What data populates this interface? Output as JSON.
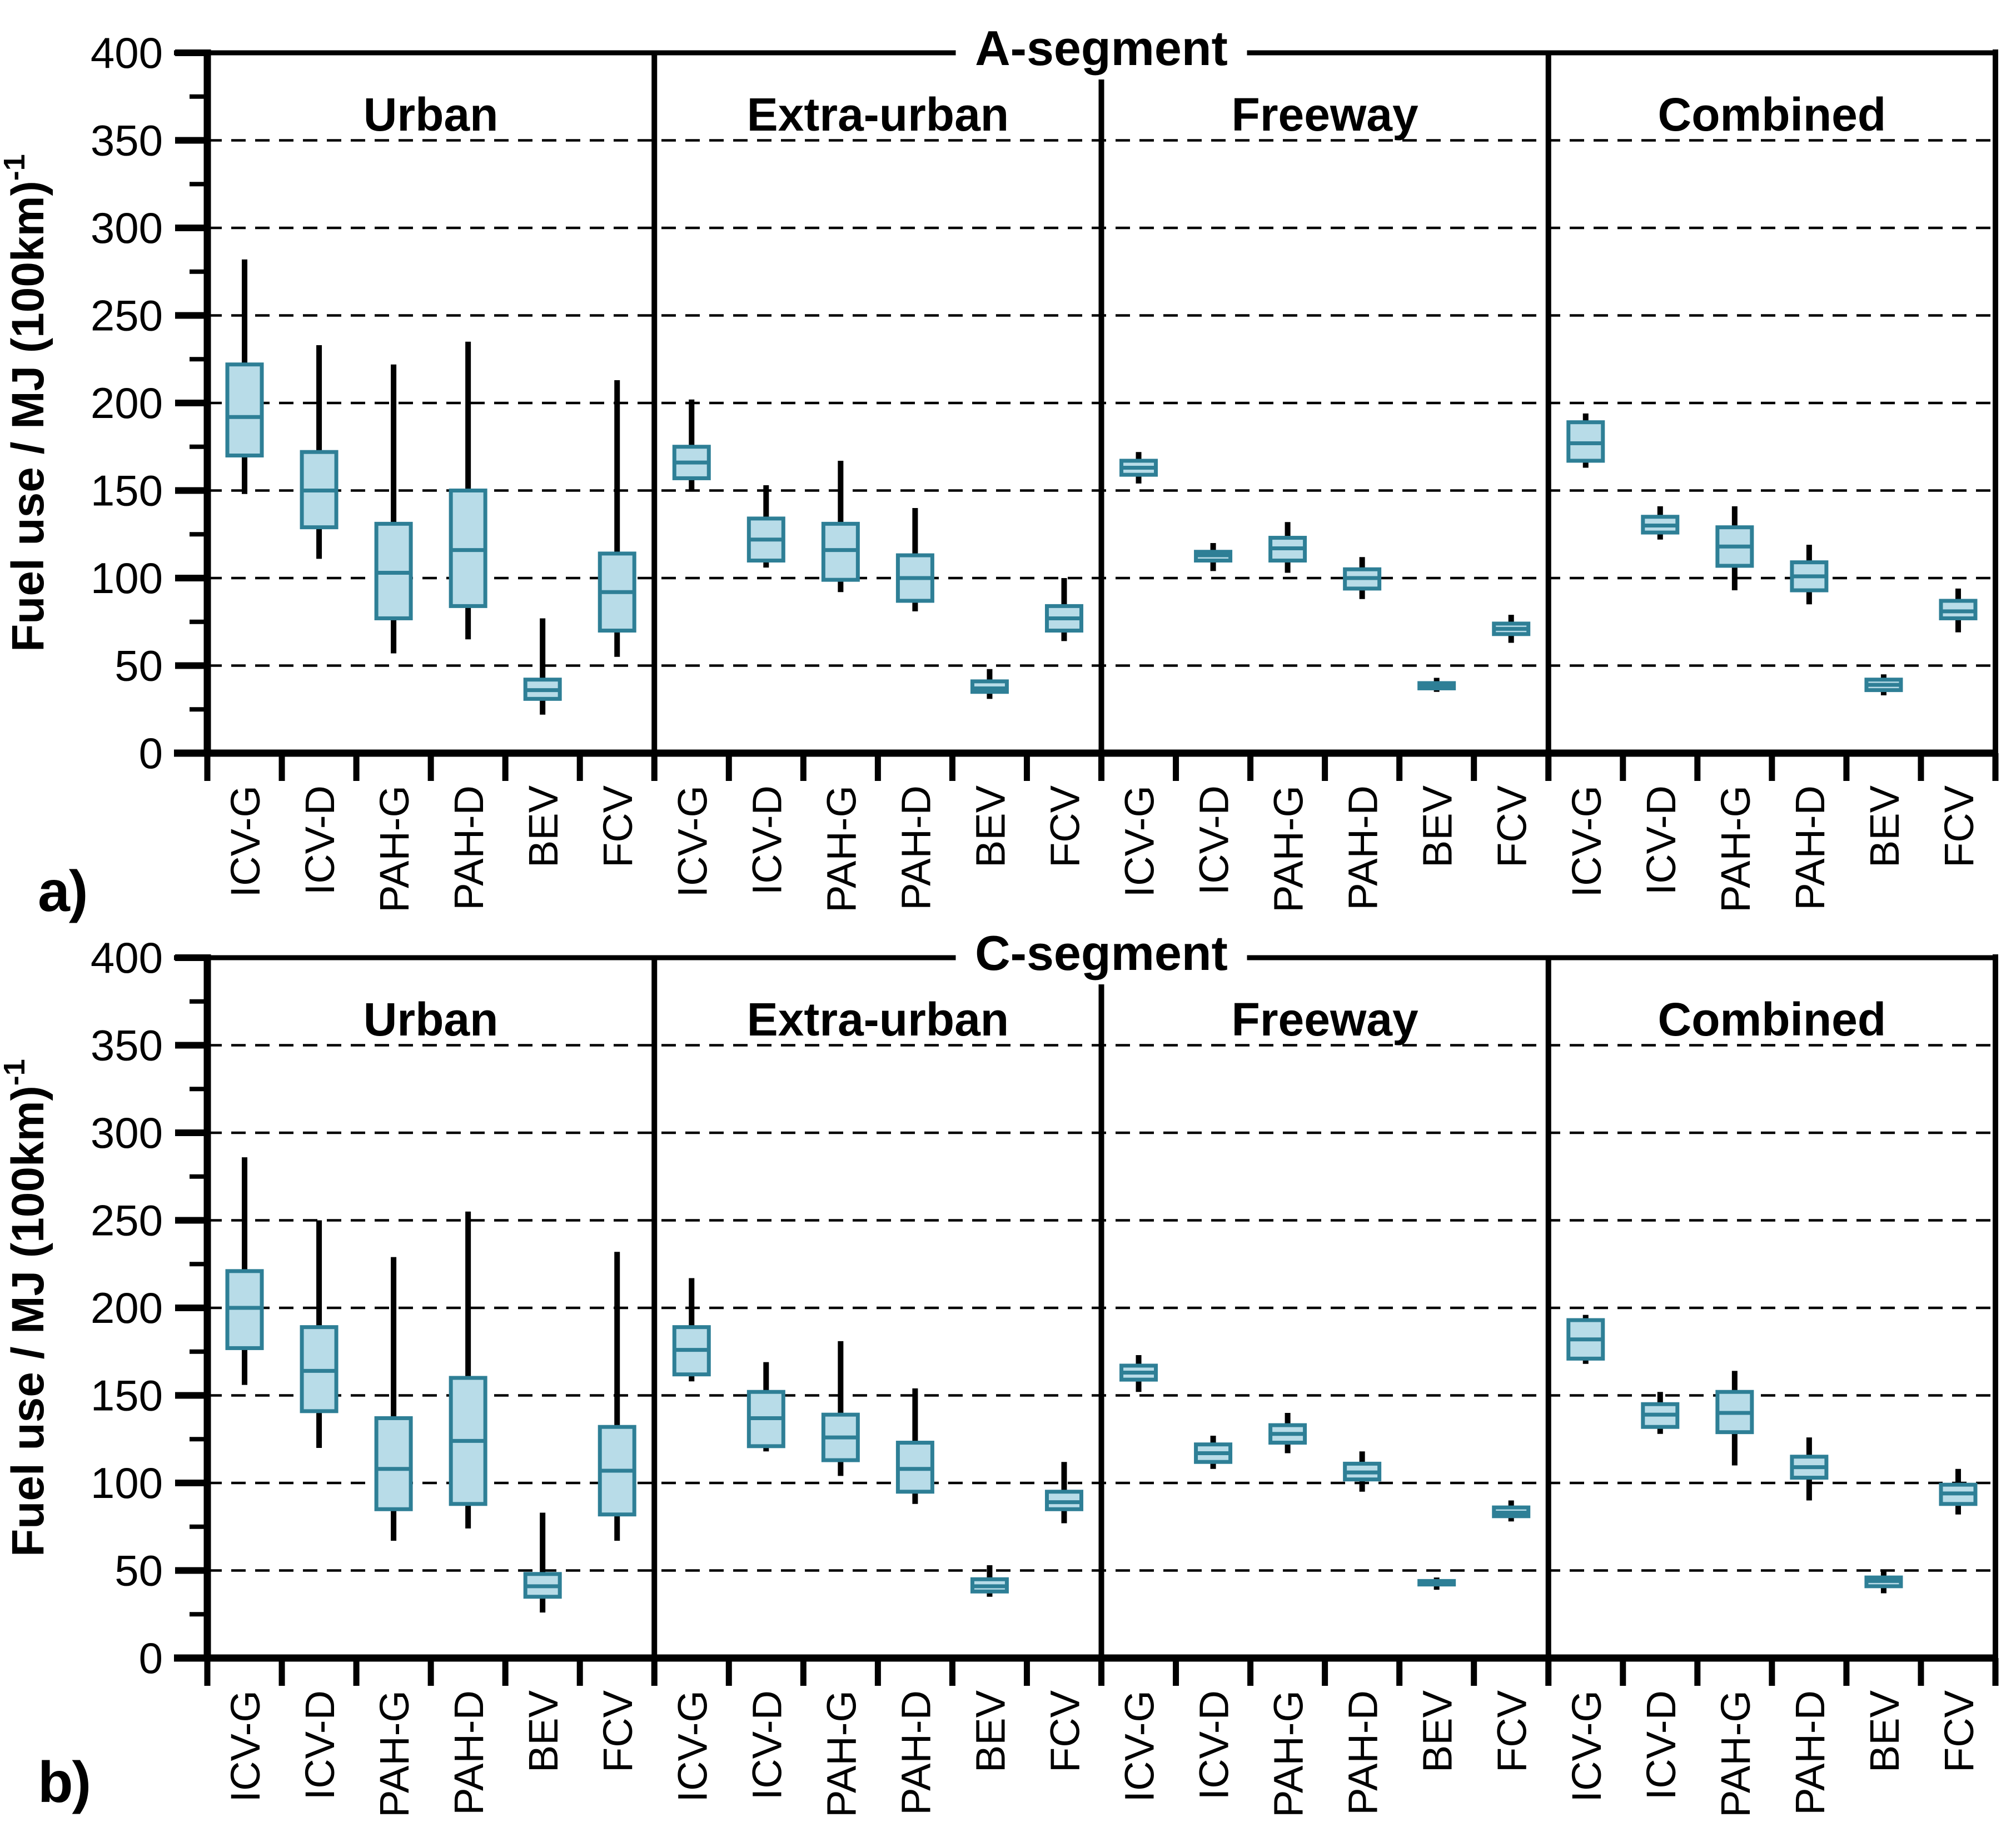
{
  "figure": {
    "ylabel_text": "Fuel use / MJ (100km)",
    "ylabel_superscript": "-1",
    "panel_a_label": "a)",
    "panel_b_label": "b)"
  },
  "axis": {
    "ylim": [
      0,
      400
    ],
    "major_step": 50,
    "minor_step": 25,
    "grid_values": [
      50,
      100,
      150,
      200,
      250,
      300,
      350
    ],
    "ytick_labels": [
      "0",
      "50",
      "100",
      "150",
      "200",
      "250",
      "300",
      "350",
      "400"
    ]
  },
  "colors": {
    "box_fill": "#b8dce8",
    "box_border": "#2e7f96",
    "axis": "#000000",
    "gridline": "#000000",
    "background": "#ffffff"
  },
  "categories": [
    "ICV-G",
    "ICV-D",
    "PAH-G",
    "PAH-D",
    "BEV",
    "FCV"
  ],
  "chart_data": [
    {
      "type": "boxplot",
      "segment": "A-segment",
      "panel_label": "a)",
      "ylabel": "Fuel use / MJ (100km)-1",
      "ylim": [
        0,
        400
      ],
      "grid": "dashed horizontal every 50",
      "conditions": [
        {
          "label": "Urban",
          "boxes": [
            {
              "category": "ICV-G",
              "whisker_low": 148,
              "q1": 170,
              "median": 192,
              "q3": 222,
              "whisker_high": 282
            },
            {
              "category": "ICV-D",
              "whisker_low": 111,
              "q1": 129,
              "median": 150,
              "q3": 172,
              "whisker_high": 233
            },
            {
              "category": "PAH-G",
              "whisker_low": 57,
              "q1": 77,
              "median": 103,
              "q3": 131,
              "whisker_high": 222
            },
            {
              "category": "PAH-D",
              "whisker_low": 65,
              "q1": 84,
              "median": 116,
              "q3": 150,
              "whisker_high": 235
            },
            {
              "category": "BEV",
              "whisker_low": 22,
              "q1": 31,
              "median": 36,
              "q3": 42,
              "whisker_high": 77
            },
            {
              "category": "FCV",
              "whisker_low": 55,
              "q1": 70,
              "median": 92,
              "q3": 114,
              "whisker_high": 213
            }
          ]
        },
        {
          "label": "Extra-urban",
          "boxes": [
            {
              "category": "ICV-G",
              "whisker_low": 150,
              "q1": 157,
              "median": 166,
              "q3": 175,
              "whisker_high": 202
            },
            {
              "category": "ICV-D",
              "whisker_low": 106,
              "q1": 110,
              "median": 122,
              "q3": 134,
              "whisker_high": 153
            },
            {
              "category": "PAH-G",
              "whisker_low": 92,
              "q1": 99,
              "median": 116,
              "q3": 131,
              "whisker_high": 167
            },
            {
              "category": "PAH-D",
              "whisker_low": 81,
              "q1": 87,
              "median": 100,
              "q3": 113,
              "whisker_high": 140
            },
            {
              "category": "BEV",
              "whisker_low": 31,
              "q1": 35,
              "median": 37,
              "q3": 41,
              "whisker_high": 48
            },
            {
              "category": "FCV",
              "whisker_low": 64,
              "q1": 70,
              "median": 77,
              "q3": 84,
              "whisker_high": 100
            }
          ]
        },
        {
          "label": "Freeway",
          "boxes": [
            {
              "category": "ICV-G",
              "whisker_low": 154,
              "q1": 159,
              "median": 163,
              "q3": 167,
              "whisker_high": 172
            },
            {
              "category": "ICV-D",
              "whisker_low": 104,
              "q1": 110,
              "median": 113,
              "q3": 115,
              "whisker_high": 120
            },
            {
              "category": "PAH-G",
              "whisker_low": 103,
              "q1": 110,
              "median": 117,
              "q3": 123,
              "whisker_high": 132
            },
            {
              "category": "PAH-D",
              "whisker_low": 88,
              "q1": 94,
              "median": 100,
              "q3": 105,
              "whisker_high": 112
            },
            {
              "category": "BEV",
              "whisker_low": 35,
              "q1": 37,
              "median": 39,
              "q3": 40,
              "whisker_high": 43
            },
            {
              "category": "FCV",
              "whisker_low": 63,
              "q1": 68,
              "median": 71,
              "q3": 74,
              "whisker_high": 79
            }
          ]
        },
        {
          "label": "Combined",
          "boxes": [
            {
              "category": "ICV-G",
              "whisker_low": 163,
              "q1": 167,
              "median": 177,
              "q3": 189,
              "whisker_high": 194
            },
            {
              "category": "ICV-D",
              "whisker_low": 122,
              "q1": 126,
              "median": 130,
              "q3": 135,
              "whisker_high": 141
            },
            {
              "category": "PAH-G",
              "whisker_low": 93,
              "q1": 107,
              "median": 118,
              "q3": 129,
              "whisker_high": 141
            },
            {
              "category": "PAH-D",
              "whisker_low": 85,
              "q1": 93,
              "median": 101,
              "q3": 109,
              "whisker_high": 119
            },
            {
              "category": "BEV",
              "whisker_low": 33,
              "q1": 36,
              "median": 39,
              "q3": 42,
              "whisker_high": 45
            },
            {
              "category": "FCV",
              "whisker_low": 69,
              "q1": 77,
              "median": 81,
              "q3": 87,
              "whisker_high": 94
            }
          ]
        }
      ]
    },
    {
      "type": "boxplot",
      "segment": "C-segment",
      "panel_label": "b)",
      "ylabel": "Fuel use / MJ (100km)-1",
      "ylim": [
        0,
        400
      ],
      "grid": "dashed horizontal every 50",
      "conditions": [
        {
          "label": "Urban",
          "boxes": [
            {
              "category": "ICV-G",
              "whisker_low": 156,
              "q1": 177,
              "median": 200,
              "q3": 221,
              "whisker_high": 286
            },
            {
              "category": "ICV-D",
              "whisker_low": 120,
              "q1": 141,
              "median": 164,
              "q3": 189,
              "whisker_high": 250
            },
            {
              "category": "PAH-G",
              "whisker_low": 67,
              "q1": 85,
              "median": 108,
              "q3": 137,
              "whisker_high": 229
            },
            {
              "category": "PAH-D",
              "whisker_low": 74,
              "q1": 88,
              "median": 124,
              "q3": 160,
              "whisker_high": 255
            },
            {
              "category": "BEV",
              "whisker_low": 26,
              "q1": 35,
              "median": 41,
              "q3": 48,
              "whisker_high": 83
            },
            {
              "category": "FCV",
              "whisker_low": 67,
              "q1": 82,
              "median": 107,
              "q3": 132,
              "whisker_high": 232
            }
          ]
        },
        {
          "label": "Extra-urban",
          "boxes": [
            {
              "category": "ICV-G",
              "whisker_low": 158,
              "q1": 162,
              "median": 176,
              "q3": 189,
              "whisker_high": 217
            },
            {
              "category": "ICV-D",
              "whisker_low": 118,
              "q1": 121,
              "median": 137,
              "q3": 152,
              "whisker_high": 169
            },
            {
              "category": "PAH-G",
              "whisker_low": 104,
              "q1": 113,
              "median": 126,
              "q3": 139,
              "whisker_high": 181
            },
            {
              "category": "PAH-D",
              "whisker_low": 88,
              "q1": 95,
              "median": 108,
              "q3": 123,
              "whisker_high": 154
            },
            {
              "category": "BEV",
              "whisker_low": 35,
              "q1": 38,
              "median": 41,
              "q3": 45,
              "whisker_high": 53
            },
            {
              "category": "FCV",
              "whisker_low": 77,
              "q1": 85,
              "median": 89,
              "q3": 95,
              "whisker_high": 112
            }
          ]
        },
        {
          "label": "Freeway",
          "boxes": [
            {
              "category": "ICV-G",
              "whisker_low": 152,
              "q1": 159,
              "median": 163,
              "q3": 167,
              "whisker_high": 173
            },
            {
              "category": "ICV-D",
              "whisker_low": 108,
              "q1": 112,
              "median": 117,
              "q3": 122,
              "whisker_high": 127
            },
            {
              "category": "PAH-G",
              "whisker_low": 117,
              "q1": 123,
              "median": 128,
              "q3": 133,
              "whisker_high": 140
            },
            {
              "category": "PAH-D",
              "whisker_low": 95,
              "q1": 102,
              "median": 106,
              "q3": 111,
              "whisker_high": 118
            },
            {
              "category": "BEV",
              "whisker_low": 39,
              "q1": 42,
              "median": 43,
              "q3": 44,
              "whisker_high": 46
            },
            {
              "category": "FCV",
              "whisker_low": 78,
              "q1": 81,
              "median": 83,
              "q3": 86,
              "whisker_high": 90
            }
          ]
        },
        {
          "label": "Combined",
          "boxes": [
            {
              "category": "ICV-G",
              "whisker_low": 168,
              "q1": 171,
              "median": 182,
              "q3": 193,
              "whisker_high": 196
            },
            {
              "category": "ICV-D",
              "whisker_low": 128,
              "q1": 132,
              "median": 139,
              "q3": 145,
              "whisker_high": 152
            },
            {
              "category": "PAH-G",
              "whisker_low": 110,
              "q1": 129,
              "median": 140,
              "q3": 152,
              "whisker_high": 164
            },
            {
              "category": "PAH-D",
              "whisker_low": 90,
              "q1": 103,
              "median": 109,
              "q3": 115,
              "whisker_high": 126
            },
            {
              "category": "BEV",
              "whisker_low": 37,
              "q1": 41,
              "median": 44,
              "q3": 46,
              "whisker_high": 50
            },
            {
              "category": "FCV",
              "whisker_low": 82,
              "q1": 88,
              "median": 94,
              "q3": 99,
              "whisker_high": 108
            }
          ]
        }
      ]
    }
  ]
}
